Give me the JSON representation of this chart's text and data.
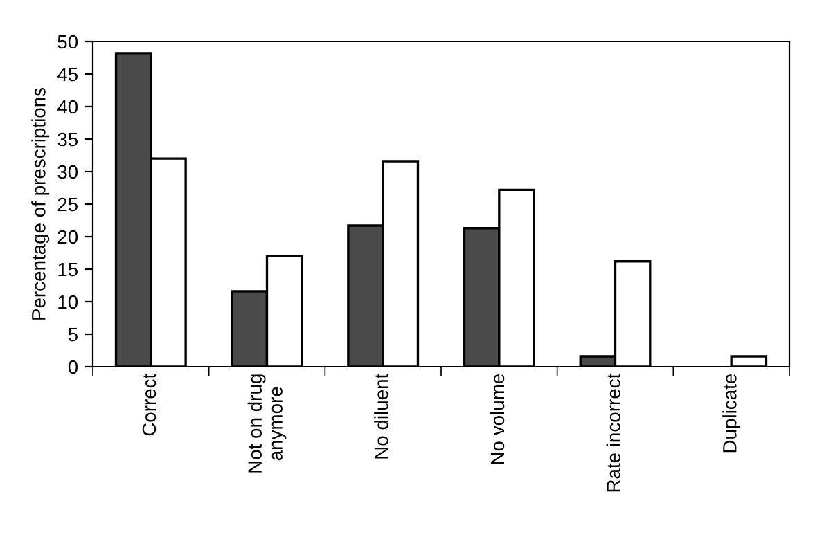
{
  "chart_data": {
    "type": "bar",
    "ylabel": "Percentage of prescriptions",
    "categories": [
      "Correct",
      "Not on drug\nanymore",
      "No diluent",
      "No volume",
      "Rate incorrect",
      "Duplicate"
    ],
    "series": [
      {
        "color": "#4a4a4a",
        "values": [
          48.2,
          11.6,
          21.7,
          21.3,
          1.6,
          null
        ]
      },
      {
        "color": "#ffffff",
        "values": [
          32.0,
          17.0,
          31.6,
          27.2,
          16.2,
          1.6
        ]
      }
    ],
    "ylim": [
      0,
      50
    ],
    "yticks": [
      0,
      5,
      10,
      15,
      20,
      25,
      30,
      35,
      40,
      45,
      50
    ],
    "grid": false,
    "legend": false
  }
}
